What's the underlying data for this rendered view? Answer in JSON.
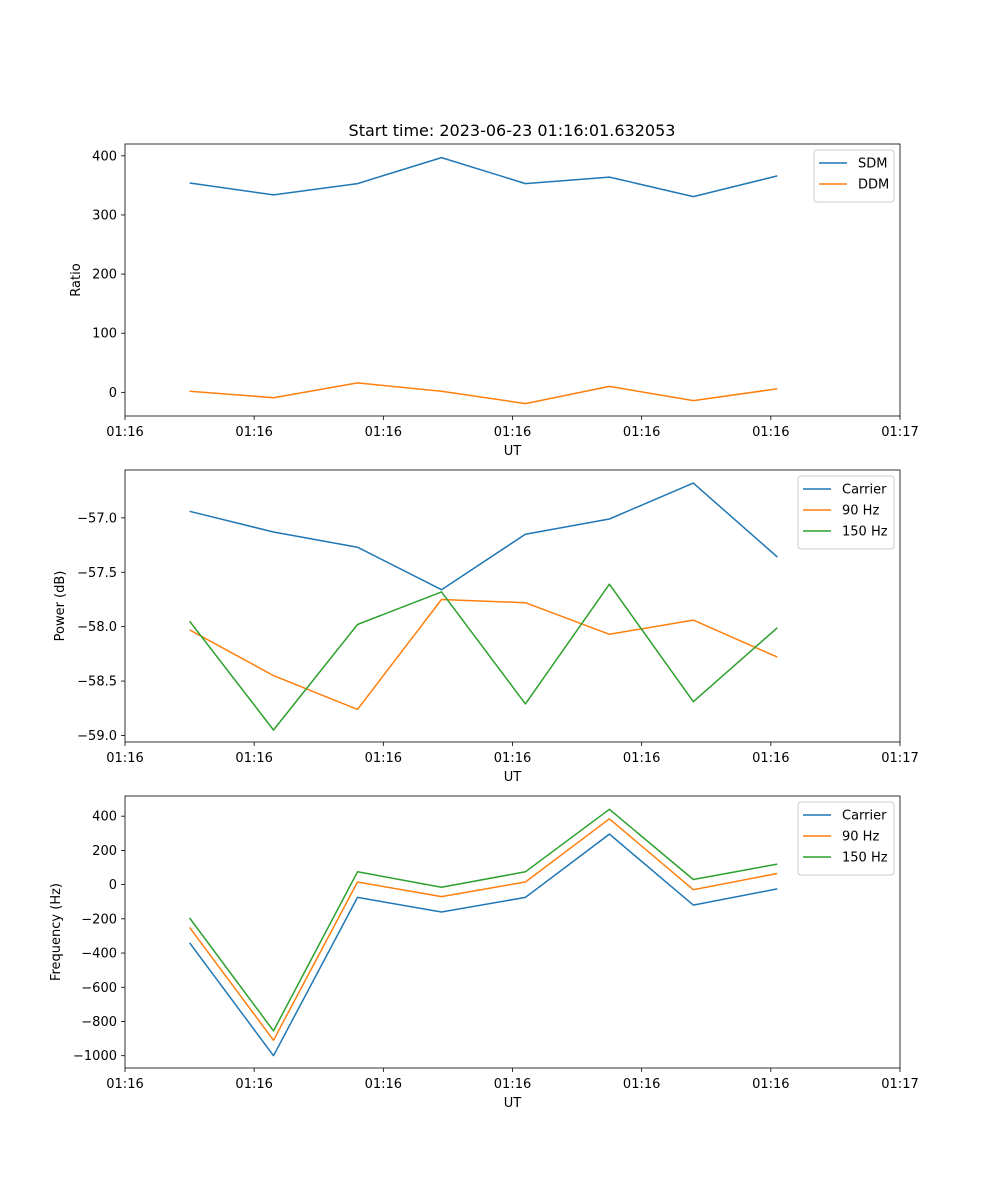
{
  "figure_title": "Start time: 2023-06-23 01:16:01.632053",
  "chart_data": [
    {
      "type": "line",
      "title": "Start time: 2023-06-23 01:16:01.632053",
      "xlabel": "UT",
      "ylabel": "Ratio",
      "xlim": [
        0,
        12
      ],
      "ylim": [
        -40,
        420
      ],
      "x_ticks": [
        0,
        2,
        4,
        6,
        8,
        10,
        12
      ],
      "x_tick_labels": [
        "01:16",
        "01:16",
        "01:16",
        "01:16",
        "01:16",
        "01:16",
        "01:17"
      ],
      "y_ticks": [
        0,
        100,
        200,
        300,
        400
      ],
      "y_tick_labels": [
        "0",
        "100",
        "200",
        "300",
        "400"
      ],
      "legend_position": "top-right",
      "grid": false,
      "x": [
        1,
        2.3,
        3.6,
        4.9,
        6.2,
        7.5,
        8.8,
        10.1
      ],
      "series": [
        {
          "name": "SDM",
          "color": "#1f77b4",
          "values": [
            354,
            334,
            353,
            397,
            353,
            364,
            331,
            366
          ]
        },
        {
          "name": "DDM",
          "color": "#ff7f0e",
          "values": [
            2,
            -9,
            16,
            2,
            -19,
            10,
            -14,
            6
          ]
        }
      ]
    },
    {
      "type": "line",
      "xlabel": "UT",
      "ylabel": "Power (dB)",
      "xlim": [
        0,
        12
      ],
      "ylim": [
        -59.06,
        -56.56
      ],
      "x_ticks": [
        0,
        2,
        4,
        6,
        8,
        10,
        12
      ],
      "x_tick_labels": [
        "01:16",
        "01:16",
        "01:16",
        "01:16",
        "01:16",
        "01:16",
        "01:17"
      ],
      "y_ticks": [
        -59.0,
        -58.5,
        -58.0,
        -57.5,
        -57.0
      ],
      "y_tick_labels": [
        "−59.0",
        "−58.5",
        "−58.0",
        "−57.5",
        "−57.0"
      ],
      "legend_position": "top-right",
      "grid": false,
      "x": [
        1,
        2.3,
        3.6,
        4.9,
        6.2,
        7.5,
        8.8,
        10.1
      ],
      "series": [
        {
          "name": "Carrier",
          "color": "#1f77b4",
          "values": [
            -56.94,
            -57.13,
            -57.27,
            -57.66,
            -57.15,
            -57.01,
            -56.68,
            -57.36
          ]
        },
        {
          "name": "90 Hz",
          "color": "#ff7f0e",
          "values": [
            -58.03,
            -58.45,
            -58.76,
            -57.75,
            -57.78,
            -58.07,
            -57.94,
            -58.28
          ]
        },
        {
          "name": "150 Hz",
          "color": "#2ca02c",
          "values": [
            -57.95,
            -58.95,
            -57.98,
            -57.68,
            -58.71,
            -57.61,
            -58.69,
            -58.01
          ]
        }
      ]
    },
    {
      "type": "line",
      "xlabel": "UT",
      "ylabel": "Frequency (Hz)",
      "xlim": [
        0,
        12
      ],
      "ylim": [
        -1072,
        518
      ],
      "x_ticks": [
        0,
        2,
        4,
        6,
        8,
        10,
        12
      ],
      "x_tick_labels": [
        "01:16",
        "01:16",
        "01:16",
        "01:16",
        "01:16",
        "01:16",
        "01:17"
      ],
      "y_ticks": [
        -1000,
        -800,
        -600,
        -400,
        -200,
        0,
        200,
        400
      ],
      "y_tick_labels": [
        "−1000",
        "−800",
        "−600",
        "−400",
        "−200",
        "0",
        "200",
        "400"
      ],
      "legend_position": "top-right",
      "grid": false,
      "x": [
        1,
        2.3,
        3.6,
        4.9,
        6.2,
        7.5,
        8.8,
        10.1
      ],
      "series": [
        {
          "name": "Carrier",
          "color": "#1f77b4",
          "values": [
            -340,
            -1000,
            -75,
            -160,
            -75,
            295,
            -120,
            -25
          ]
        },
        {
          "name": "90 Hz",
          "color": "#ff7f0e",
          "values": [
            -250,
            -910,
            15,
            -70,
            15,
            385,
            -30,
            65
          ]
        },
        {
          "name": "150 Hz",
          "color": "#2ca02c",
          "values": [
            -195,
            -855,
            75,
            -15,
            75,
            440,
            30,
            120
          ]
        }
      ]
    }
  ]
}
